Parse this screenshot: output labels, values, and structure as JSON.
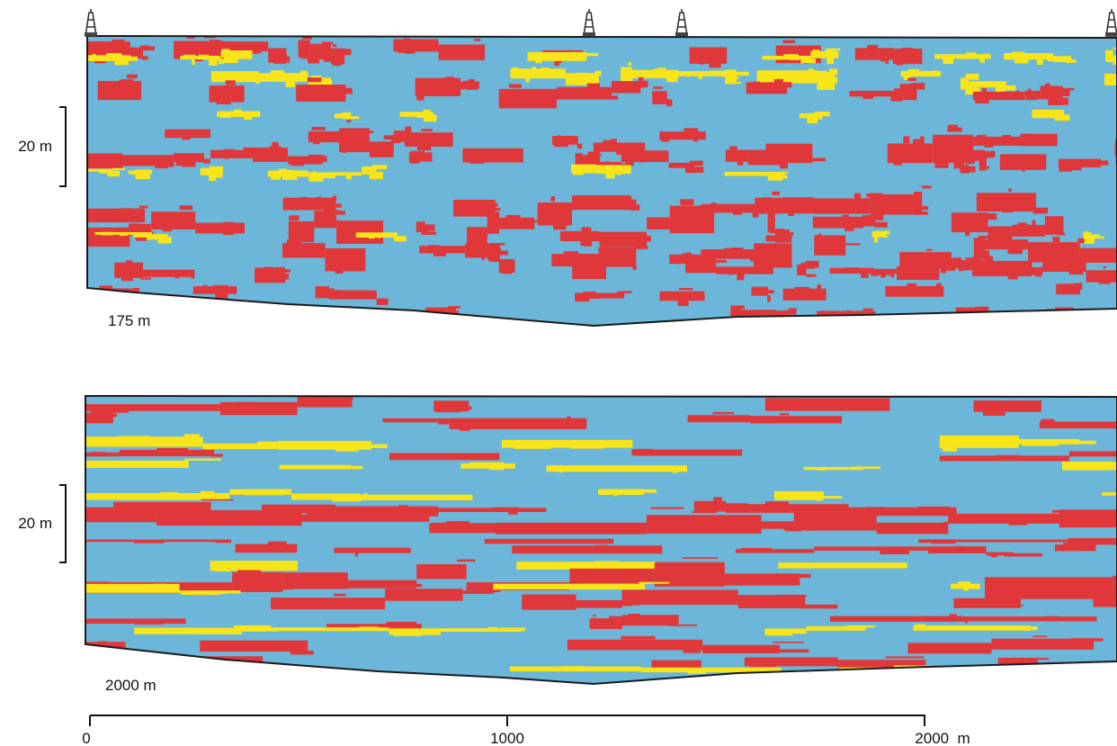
{
  "colors": {
    "background": "#6cb6d9",
    "red": "#e0383a",
    "yellow": "#f7e51a",
    "outline": "#1a1a1a"
  },
  "wells": {
    "icon": "drill-rig-icon",
    "count": 4
  },
  "sections": [
    {
      "label": "175 m",
      "scale_label": "20 m",
      "texture": "blocky"
    },
    {
      "label": "2000 m",
      "scale_label": "20 m",
      "texture": "layered"
    }
  ],
  "axis": {
    "tick_labels": [
      "0",
      "1000",
      "2000  m"
    ],
    "tick_values": [
      0,
      1000,
      2000
    ]
  }
}
